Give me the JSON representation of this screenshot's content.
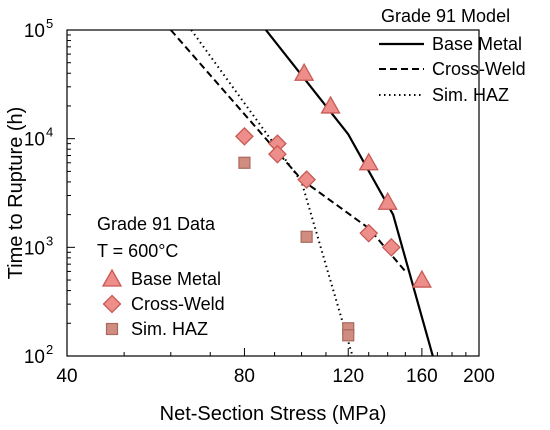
{
  "chart_data": {
    "type": "scatter",
    "xlabel": "Net-Section Stress (MPa)",
    "ylabel": "Time to Rupture (h)",
    "xscale": "log",
    "yscale": "log",
    "xlim": [
      40,
      200
    ],
    "ylim": [
      100,
      100000
    ],
    "x_ticks": [
      {
        "value": 40,
        "label": "40"
      },
      {
        "value": 80,
        "label": "80"
      },
      {
        "value": 120,
        "label": "120"
      },
      {
        "value": 160,
        "label": "160"
      },
      {
        "value": 200,
        "label": "200"
      }
    ],
    "y_ticks": [
      {
        "value": 100,
        "base": "10",
        "exp": "2"
      },
      {
        "value": 1000,
        "base": "10",
        "exp": "3"
      },
      {
        "value": 10000,
        "base": "10",
        "exp": "4"
      },
      {
        "value": 100000,
        "base": "10",
        "exp": "5"
      }
    ],
    "colors": {
      "marker_fill": "#ee8e8a",
      "marker_stroke": "#c85a55",
      "haz_fill": "#d08c80",
      "haz_stroke": "#a86a5e",
      "line": "#000000"
    },
    "series": [
      {
        "name": "Base Metal",
        "marker": "triangle",
        "points": [
          {
            "x": 101,
            "y": 40000
          },
          {
            "x": 112,
            "y": 20000
          },
          {
            "x": 130,
            "y": 6000
          },
          {
            "x": 140,
            "y": 2600
          },
          {
            "x": 160,
            "y": 500
          }
        ]
      },
      {
        "name": "Cross-Weld",
        "marker": "diamond",
        "points": [
          {
            "x": 80,
            "y": 10500
          },
          {
            "x": 91,
            "y": 9000
          },
          {
            "x": 91,
            "y": 7200
          },
          {
            "x": 102,
            "y": 4200
          },
          {
            "x": 130,
            "y": 1350
          },
          {
            "x": 142,
            "y": 1000
          }
        ]
      },
      {
        "name": "Sim. HAZ",
        "marker": "square",
        "points": [
          {
            "x": 80,
            "y": 6000
          },
          {
            "x": 102,
            "y": 1250
          },
          {
            "x": 120,
            "y": 180
          },
          {
            "x": 120,
            "y": 155
          }
        ]
      }
    ],
    "model_lines": [
      {
        "name": "Base Metal",
        "dash": "solid",
        "points": [
          {
            "x": 87,
            "y": 100000
          },
          {
            "x": 120,
            "y": 11000
          },
          {
            "x": 143,
            "y": 2000
          },
          {
            "x": 167,
            "y": 100
          }
        ]
      },
      {
        "name": "Cross-Weld",
        "dash": "dashed",
        "points": [
          {
            "x": 60,
            "y": 100000
          },
          {
            "x": 100,
            "y": 4200
          },
          {
            "x": 130,
            "y": 1500
          },
          {
            "x": 150,
            "y": 600
          }
        ]
      },
      {
        "name": "Sim. HAZ",
        "dash": "dotted",
        "points": [
          {
            "x": 65,
            "y": 100000
          },
          {
            "x": 100,
            "y": 4000
          },
          {
            "x": 122,
            "y": 100
          }
        ]
      }
    ],
    "data_legend": {
      "title": "Grade 91 Data",
      "subtitle": "T = 600°C",
      "entries": [
        "Base Metal",
        "Cross-Weld",
        "Sim. HAZ"
      ]
    },
    "model_legend": {
      "title": "Grade 91 Model",
      "entries": [
        "Base Metal",
        "Cross-Weld",
        "Sim. HAZ"
      ]
    }
  }
}
